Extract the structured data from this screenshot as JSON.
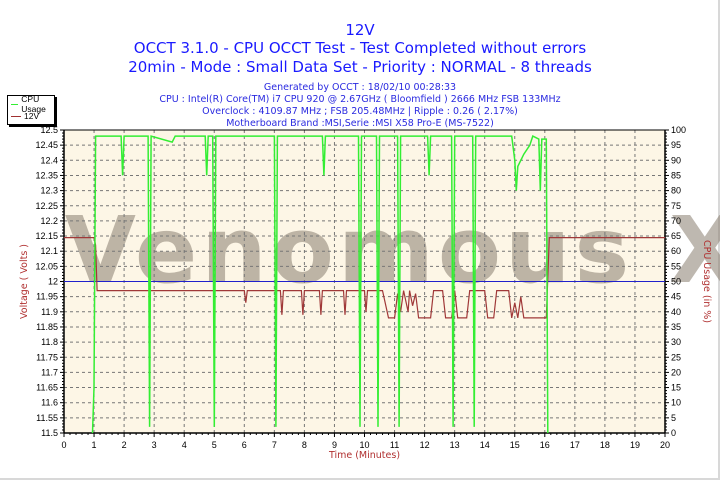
{
  "header": {
    "title": "12V",
    "line2": "OCCT 3.1.0 - CPU OCCT Test - Test Completed without errors",
    "line3": "20min - Mode : Small Data Set - Priority : NORMAL - 8 threads",
    "generated": "Generated by OCCT : 18/02/10 00:28:33",
    "cpu": "CPU : Intel(R) Core(TM) i7 CPU 920 @ 2.67GHz ( Bloomfield ) 2666 MHz FSB 133MHz",
    "overclock": "Overclock : 4109.87 MHz ; FSB 205.48MHz | Ripple : 0.26 ( 2.17%)",
    "motherboard": "Motherboard Brand :MSI,Serie :MSI X58 Pro-E (MS-7522)"
  },
  "legend": [
    {
      "label": "CPU Usage",
      "color": "#33ee33"
    },
    {
      "label": "12V",
      "color": "#a03030"
    }
  ],
  "watermark": "Venomous X",
  "colors": {
    "title": "#1a1aff",
    "plot_bg": "#fdf6e6",
    "grid": "#777777",
    "cpu": "#33ee33",
    "voltage": "#a03838",
    "nominal": "#2020cc",
    "axis_label": "#b03030"
  },
  "chart_data": {
    "type": "line",
    "title": "12V",
    "xlabel": "Time (Minutes)",
    "ylabel": "Voltage ( Volts )",
    "y2label": "CPU Usage (in %)",
    "xlim": [
      0,
      20
    ],
    "ylim": [
      11.5,
      12.5
    ],
    "y2lim": [
      0,
      100
    ],
    "grid": true,
    "legend_position": "top-left",
    "x_ticks": [
      "0",
      "1",
      "2",
      "3",
      "4",
      "5",
      "6",
      "7",
      "8",
      "9",
      "10",
      "11",
      "12",
      "13",
      "14",
      "15",
      "16",
      "17",
      "18",
      "19",
      "20"
    ],
    "y_ticks": [
      "12.5",
      "12.45",
      "12.4",
      "12.35",
      "12.3",
      "12.25",
      "12.2",
      "12.15",
      "12.1",
      "12.05",
      "12",
      "11.95",
      "11.9",
      "11.85",
      "11.8",
      "11.75",
      "11.7",
      "11.65",
      "11.6",
      "11.55",
      "11.5"
    ],
    "y2_ticks": [
      "100",
      "95",
      "90",
      "85",
      "80",
      "75",
      "70",
      "65",
      "60",
      "55",
      "50",
      "45",
      "40",
      "35",
      "30",
      "25",
      "20",
      "15",
      "10",
      "5",
      "0"
    ],
    "nominal_line": 12.0,
    "series": [
      {
        "name": "12V",
        "axis": "left",
        "points": [
          [
            0,
            12.145
          ],
          [
            1.0,
            12.145
          ],
          [
            1.05,
            12.12
          ],
          [
            1.1,
            11.97
          ],
          [
            6.0,
            11.97
          ],
          [
            6.05,
            11.93
          ],
          [
            6.1,
            11.97
          ],
          [
            7.2,
            11.97
          ],
          [
            7.25,
            11.89
          ],
          [
            7.3,
            11.97
          ],
          [
            7.9,
            11.97
          ],
          [
            7.95,
            11.89
          ],
          [
            8.0,
            11.97
          ],
          [
            8.5,
            11.97
          ],
          [
            8.55,
            11.89
          ],
          [
            8.6,
            11.97
          ],
          [
            9.3,
            11.97
          ],
          [
            9.35,
            11.89
          ],
          [
            9.4,
            11.97
          ],
          [
            10.0,
            11.97
          ],
          [
            10.05,
            11.9
          ],
          [
            10.1,
            11.97
          ],
          [
            10.6,
            11.97
          ],
          [
            10.8,
            11.88
          ],
          [
            11.0,
            11.88
          ],
          [
            11.1,
            11.96
          ],
          [
            11.2,
            11.9
          ],
          [
            11.3,
            11.97
          ],
          [
            11.45,
            11.9
          ],
          [
            11.5,
            11.97
          ],
          [
            11.6,
            11.92
          ],
          [
            11.7,
            11.96
          ],
          [
            11.8,
            11.88
          ],
          [
            12.2,
            11.88
          ],
          [
            12.3,
            11.97
          ],
          [
            12.6,
            11.97
          ],
          [
            12.7,
            11.88
          ],
          [
            12.9,
            11.88
          ],
          [
            13.0,
            11.97
          ],
          [
            13.1,
            11.88
          ],
          [
            13.4,
            11.88
          ],
          [
            13.5,
            11.97
          ],
          [
            14.0,
            11.97
          ],
          [
            14.1,
            11.88
          ],
          [
            14.3,
            11.88
          ],
          [
            14.4,
            11.97
          ],
          [
            14.8,
            11.97
          ],
          [
            14.9,
            11.88
          ],
          [
            15.0,
            11.93
          ],
          [
            15.1,
            11.88
          ],
          [
            15.2,
            11.95
          ],
          [
            15.3,
            11.88
          ],
          [
            16.05,
            11.88
          ],
          [
            16.15,
            12.145
          ],
          [
            20,
            12.145
          ]
        ]
      },
      {
        "name": "CPU Usage",
        "axis": "right",
        "points": [
          [
            0.95,
            0
          ],
          [
            1.0,
            15
          ],
          [
            1.05,
            98
          ],
          [
            1.9,
            98
          ],
          [
            1.95,
            85
          ],
          [
            2.0,
            98
          ],
          [
            2.8,
            98
          ],
          [
            2.85,
            2
          ],
          [
            2.9,
            98
          ],
          [
            3.6,
            96
          ],
          [
            3.7,
            98
          ],
          [
            4.7,
            98
          ],
          [
            4.75,
            85
          ],
          [
            4.8,
            98
          ],
          [
            4.95,
            98
          ],
          [
            5.0,
            2
          ],
          [
            5.05,
            98
          ],
          [
            7.0,
            98
          ],
          [
            7.05,
            2
          ],
          [
            7.1,
            98
          ],
          [
            6.8,
            98
          ],
          [
            8.6,
            98
          ],
          [
            8.65,
            85
          ],
          [
            8.7,
            98
          ],
          [
            9.8,
            98
          ],
          [
            9.85,
            2
          ],
          [
            9.9,
            98
          ],
          [
            10.4,
            98
          ],
          [
            10.45,
            2
          ],
          [
            10.5,
            98
          ],
          [
            11.1,
            98
          ],
          [
            11.15,
            2
          ],
          [
            11.2,
            98
          ],
          [
            12.1,
            98
          ],
          [
            12.15,
            85
          ],
          [
            12.2,
            98
          ],
          [
            12.9,
            98
          ],
          [
            12.95,
            2
          ],
          [
            13.0,
            98
          ],
          [
            13.6,
            98
          ],
          [
            13.65,
            2
          ],
          [
            13.7,
            98
          ],
          [
            14.9,
            98
          ],
          [
            15.0,
            90
          ],
          [
            15.05,
            80
          ],
          [
            15.1,
            88
          ],
          [
            15.3,
            92
          ],
          [
            15.5,
            95
          ],
          [
            15.6,
            98
          ],
          [
            15.8,
            97
          ],
          [
            15.85,
            80
          ],
          [
            15.9,
            97
          ],
          [
            16.05,
            97
          ],
          [
            16.1,
            0
          ]
        ]
      }
    ]
  }
}
